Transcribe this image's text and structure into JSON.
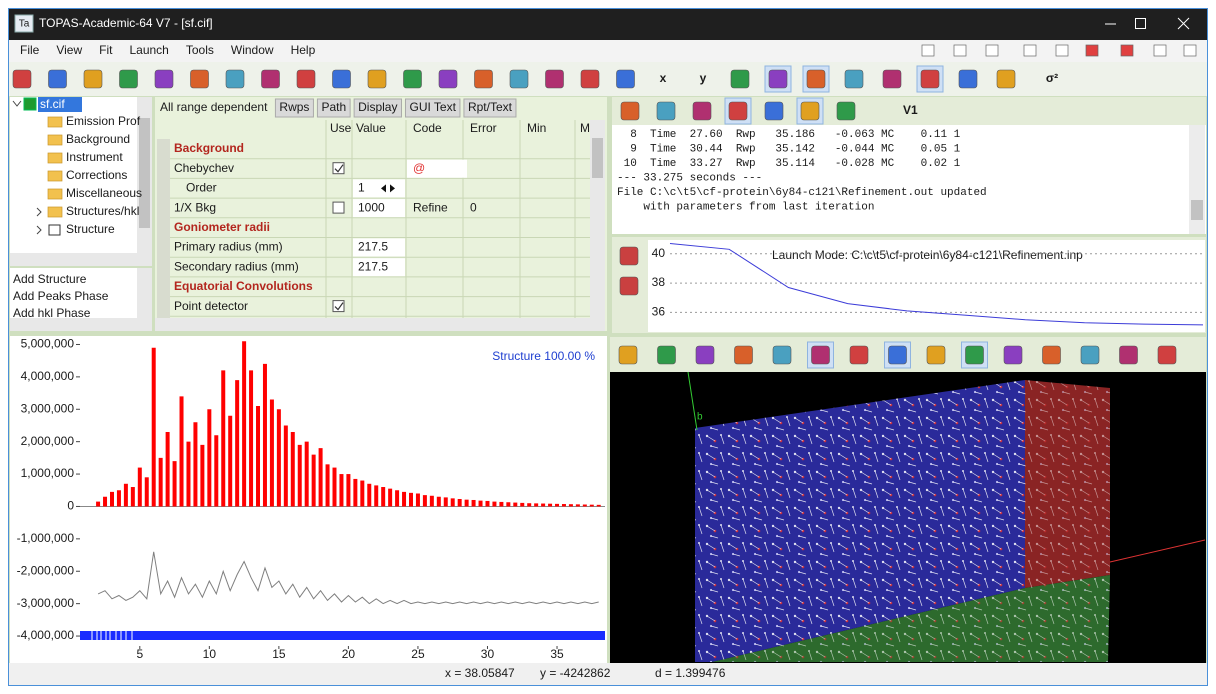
{
  "window": {
    "app_icon": "Ta",
    "title": "TOPAS-Academic-64 V7 - [sf.cif]"
  },
  "menu": [
    "File",
    "View",
    "Fit",
    "Launch",
    "Tools",
    "Window",
    "Help"
  ],
  "toolbar": {
    "labels": [
      "x",
      "y",
      "σ²"
    ]
  },
  "tree": {
    "root": "sf.cif",
    "items": [
      {
        "label": "Emission Prof",
        "icon": "folder"
      },
      {
        "label": "Background",
        "icon": "folder"
      },
      {
        "label": "Instrument",
        "icon": "folder"
      },
      {
        "label": "Corrections",
        "icon": "folder"
      },
      {
        "label": "Miscellaneous",
        "icon": "folder"
      },
      {
        "label": "Structures/hkl",
        "icon": "folder",
        "expandable": true
      },
      {
        "label": "Structure",
        "icon": "structure",
        "expandable": true
      }
    ]
  },
  "actions": [
    "Add Structure",
    "Add Peaks Phase",
    "Add hkl Phase"
  ],
  "grid": {
    "scope": "All range dependent",
    "tabs": [
      "Rwps",
      "Path",
      "Display",
      "GUI Text",
      "Rpt/Text"
    ],
    "columns": [
      "Use",
      "Value",
      "Code",
      "Error",
      "Min",
      "M"
    ],
    "rows": [
      {
        "section": "Background"
      },
      {
        "label": "Chebychev",
        "use": true,
        "code": "@",
        "children": [
          {
            "label": "Order",
            "value": "1"
          }
        ]
      },
      {
        "label": "1/X Bkg",
        "use": false,
        "value": "1000",
        "code": "Refine",
        "error": "0"
      },
      {
        "section": "Goniometer radii"
      },
      {
        "label": "Primary radius (mm)",
        "value": "217.5"
      },
      {
        "label": "Secondary radius (mm)",
        "value": "217.5"
      },
      {
        "section": "Equatorial Convolutions"
      },
      {
        "label": "Point detector",
        "use": true
      }
    ]
  },
  "console": {
    "toolbar_label": "V1",
    "lines": [
      "  8  Time  27.60  Rwp   35.186   -0.063 MC    0.11 1",
      "  9  Time  30.44  Rwp   35.142   -0.044 MC    0.05 1",
      " 10  Time  33.27  Rwp   35.114   -0.028 MC    0.02 1",
      "--- 33.275 seconds ---",
      "File C:\\c\\t5\\cf-protein\\6y84-c121\\Refinement.out updated",
      "    with parameters from last iteration"
    ]
  },
  "viewer": {
    "axis_label": "b"
  },
  "status": {
    "x": "x = 38.05847",
    "y": "y = -4242862",
    "d": "d = 1.399476"
  },
  "chart_data": [
    {
      "type": "line",
      "annotation": "Structure 100.00 %",
      "x": [
        2,
        2.5,
        3,
        3.5,
        4,
        4.5,
        5,
        5.5,
        6,
        6.5,
        7,
        7.5,
        8,
        8.5,
        9,
        9.5,
        10,
        10.5,
        11,
        11.5,
        12,
        12.5,
        13,
        13.5,
        14,
        14.5,
        15,
        15.5,
        16,
        16.5,
        17,
        17.5,
        18,
        18.5,
        19,
        19.5,
        20,
        20.5,
        21,
        21.5,
        22,
        22.5,
        23,
        23.5,
        24,
        24.5,
        25,
        25.5,
        26,
        26.5,
        27,
        27.5,
        28,
        28.5,
        29,
        29.5,
        30,
        30.5,
        31,
        31.5,
        32,
        32.5,
        33,
        33.5,
        34,
        34.5,
        35,
        35.5,
        36,
        36.5,
        37,
        37.5,
        38
      ],
      "series": [
        {
          "color": "#ff0000",
          "style": "stick",
          "values": [
            150000,
            300000,
            450000,
            500000,
            700000,
            600000,
            1200000,
            900000,
            4900000,
            1500000,
            2300000,
            1400000,
            3400000,
            2000000,
            2600000,
            1900000,
            3000000,
            2200000,
            4200000,
            2800000,
            3900000,
            5100000,
            4200000,
            3100000,
            4400000,
            3300000,
            3000000,
            2500000,
            2300000,
            1900000,
            2000000,
            1600000,
            1800000,
            1300000,
            1200000,
            1000000,
            1000000,
            850000,
            800000,
            700000,
            650000,
            600000,
            550000,
            500000,
            450000,
            420000,
            400000,
            350000,
            330000,
            300000,
            280000,
            250000,
            230000,
            210000,
            200000,
            180000,
            170000,
            150000,
            140000,
            130000,
            120000,
            110000,
            100000,
            95000,
            90000,
            85000,
            80000,
            75000,
            70000,
            65000,
            60000,
            55000,
            50000
          ]
        },
        {
          "color": "#7f7f7f",
          "style": "line",
          "values": [
            -2700000,
            -2600000,
            -2850000,
            -2750000,
            -2900000,
            -2800000,
            -2600000,
            -2850000,
            -1400000,
            -2700000,
            -2300000,
            -2800000,
            -2200000,
            -2700000,
            -2400000,
            -2800000,
            -2300000,
            -2700000,
            -2000000,
            -2600000,
            -2100000,
            -1700000,
            -2200000,
            -2600000,
            -1900000,
            -2500000,
            -2300000,
            -2700000,
            -2400000,
            -2800000,
            -2500000,
            -2850000,
            -2600000,
            -2900000,
            -2700000,
            -2950000,
            -2750000,
            -2950000,
            -2800000,
            -3000000,
            -2850000,
            -3000000,
            -2900000,
            -3000000,
            -2900000,
            -3000000,
            -2950000,
            -3000000,
            -2950000,
            -3000000,
            -2950000,
            -3000000,
            -2950000,
            -3000000,
            -2950000,
            -3000000,
            -2950000,
            -3000000,
            -2950000,
            -3000000,
            -2950000,
            -3000000,
            -2950000,
            -3000000,
            -2950000,
            -3000000,
            -2950000,
            -3000000,
            -2950000,
            -3000000,
            -2950000,
            -3000000,
            -2950000
          ]
        }
      ],
      "xlim": [
        0.7,
        38.45
      ],
      "ylim": [
        -4400000,
        5200000
      ],
      "xticks": [
        5,
        10,
        15,
        20,
        25,
        30,
        35
      ],
      "yticks": [
        {
          "value": 5000000,
          "label": "5,000,000"
        },
        {
          "value": 4000000,
          "label": "4,000,000"
        },
        {
          "value": 3000000,
          "label": "3,000,000"
        },
        {
          "value": 2000000,
          "label": "2,000,000"
        },
        {
          "value": 1000000,
          "label": "1,000,000"
        },
        0,
        {
          "value": -1000000,
          "label": "-1,000,000"
        },
        {
          "value": -2000000,
          "label": "-2,000,000"
        },
        {
          "value": -3000000,
          "label": "-3,000,000"
        },
        {
          "value": -4000000,
          "label": "-4,000,000"
        }
      ],
      "grid": false
    },
    {
      "type": "line",
      "annotation": "Launch Mode: C:\\c\\t5\\cf-protein\\6y84-c121\\Refinement.inp",
      "categories": [
        null,
        null,
        null,
        null,
        null,
        null,
        null,
        null,
        null,
        null
      ],
      "series": [
        {
          "color": "#3c3cd8",
          "style": "line",
          "values": [
            40.7,
            40.3,
            37.7,
            36.6,
            36.1,
            35.8,
            35.5,
            35.3,
            35.2,
            35.15
          ]
        }
      ],
      "ylim": [
        34.8,
        40.8
      ],
      "yticks": [
        36,
        38,
        40
      ],
      "grid": true
    }
  ]
}
